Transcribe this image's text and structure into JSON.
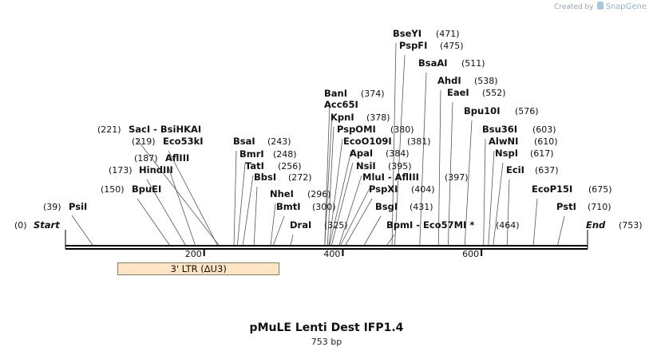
{
  "credit": {
    "prefix": "Created by",
    "brand": "SnapGene"
  },
  "title": "pMuLE Lenti Dest IFP1.4",
  "subtitle": "753 bp",
  "sequence_length": 753,
  "ends": {
    "start_label": "Start",
    "start_pos": "(0)",
    "end_label": "End",
    "end_pos": "(753)"
  },
  "ticks": [
    {
      "value": 200,
      "label": "200"
    },
    {
      "value": 400,
      "label": "400"
    },
    {
      "value": 600,
      "label": "600"
    }
  ],
  "features": [
    {
      "label": "3' LTR (ΔU3)",
      "start": 75,
      "end": 309,
      "color": "#fde4c3"
    }
  ],
  "sites": [
    {
      "name": "PsiI",
      "pos": "(39)",
      "site": 39
    },
    {
      "name": "BpuEI",
      "pos": "(150)",
      "site": 150
    },
    {
      "name": "HindIII",
      "pos": "(173)",
      "site": 173
    },
    {
      "name": "AflIII",
      "pos": "(187)",
      "site": 187
    },
    {
      "name": "Eco53kI",
      "pos": "(219)",
      "site": 219
    },
    {
      "name": "SacI - BsiHKAI",
      "pos": "(221)",
      "site": 221
    },
    {
      "name": "BsaI",
      "pos": "(243)",
      "site": 243
    },
    {
      "name": "BmrI",
      "pos": "(248)",
      "site": 248
    },
    {
      "name": "TatI",
      "pos": "(256)",
      "site": 256
    },
    {
      "name": "BbsI",
      "pos": "(272)",
      "site": 272
    },
    {
      "name": "NheI",
      "pos": "(296)",
      "site": 296
    },
    {
      "name": "BmtI",
      "pos": "(300)",
      "site": 300
    },
    {
      "name": "DraI",
      "pos": "(325)",
      "site": 325
    },
    {
      "name": "BanI",
      "pos": "(374)",
      "site": 374
    },
    {
      "name": "Acc65I",
      "pos": "",
      "site": 374
    },
    {
      "name": "KpnI",
      "pos": "(378)",
      "site": 378
    },
    {
      "name": "PspOMI",
      "pos": "(380)",
      "site": 380
    },
    {
      "name": "EcoO109I",
      "pos": "(381)",
      "site": 381
    },
    {
      "name": "ApaI",
      "pos": "(384)",
      "site": 384
    },
    {
      "name": "NsiI",
      "pos": "(395)",
      "site": 395
    },
    {
      "name": "MluI - AflIII",
      "pos": "(397)",
      "site": 397
    },
    {
      "name": "PspXI",
      "pos": "(404)",
      "site": 404
    },
    {
      "name": "BsgI",
      "pos": "(431)",
      "site": 431
    },
    {
      "name": "BpmI - Eco57MI *",
      "pos": "(464)",
      "site": 464
    },
    {
      "name": "BseYI",
      "pos": "(471)",
      "site": 471
    },
    {
      "name": "PspFI",
      "pos": "(475)",
      "site": 475
    },
    {
      "name": "BsaAI",
      "pos": "(511)",
      "site": 511
    },
    {
      "name": "AhdI",
      "pos": "(538)",
      "site": 538
    },
    {
      "name": "EaeI",
      "pos": "(552)",
      "site": 552
    },
    {
      "name": "Bpu10I",
      "pos": "(576)",
      "site": 576
    },
    {
      "name": "Bsu36I",
      "pos": "(603)",
      "site": 603
    },
    {
      "name": "AlwNI",
      "pos": "(610)",
      "site": 610
    },
    {
      "name": "NspI",
      "pos": "(617)",
      "site": 617
    },
    {
      "name": "EciI",
      "pos": "(637)",
      "site": 637
    },
    {
      "name": "EcoP15I",
      "pos": "(675)",
      "site": 675
    },
    {
      "name": "PstI",
      "pos": "(710)",
      "site": 710
    }
  ]
}
